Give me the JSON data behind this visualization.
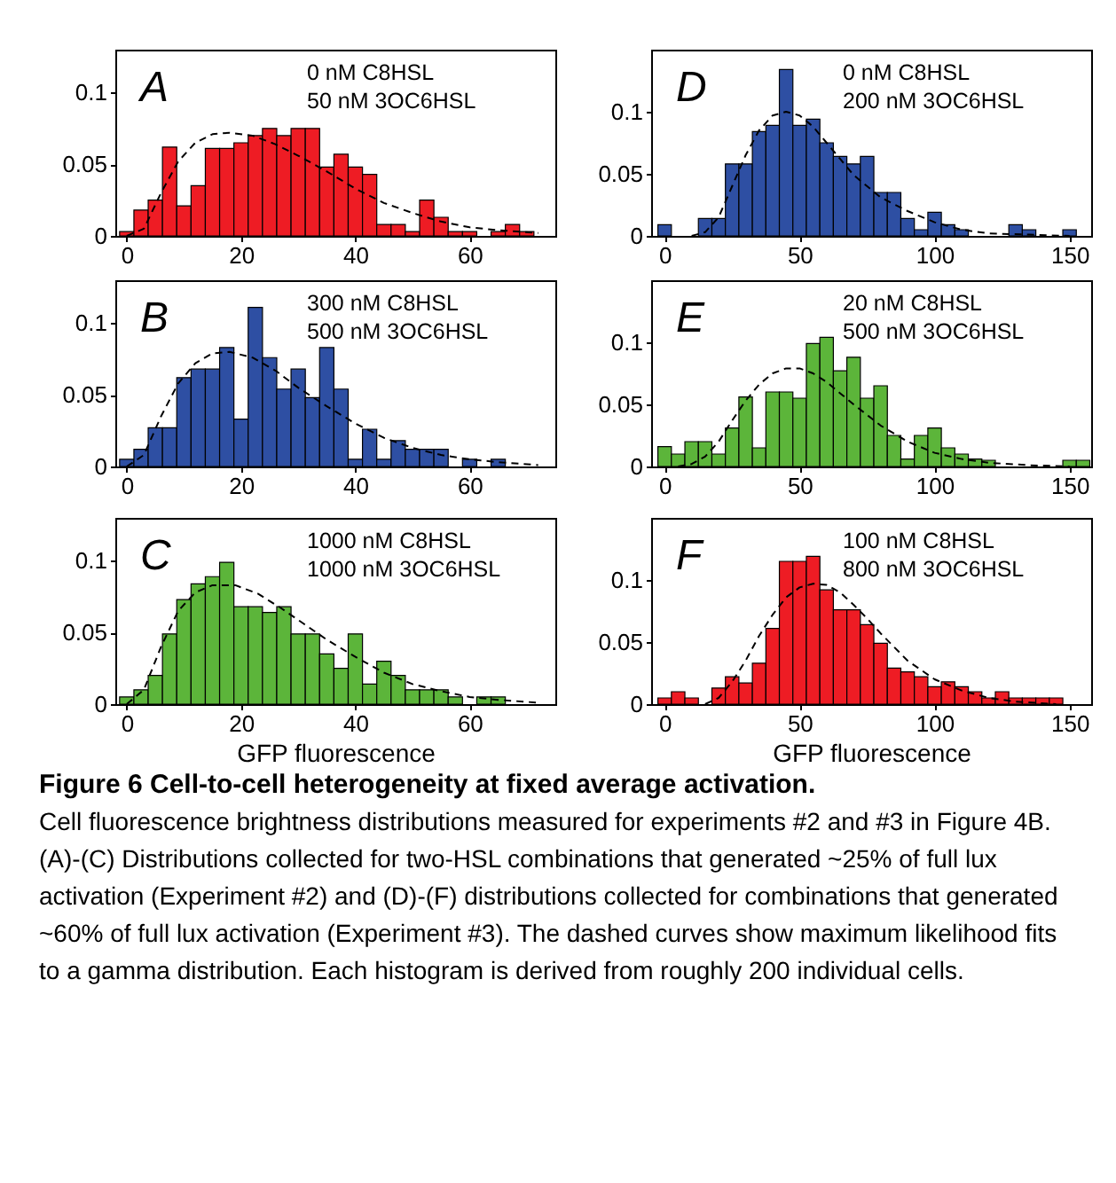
{
  "chart_data": [
    {
      "type": "histogram",
      "bins": [
        -1.25,
        1.25,
        3.75,
        6.25,
        8.75,
        11.25,
        13.75,
        16.25,
        18.75,
        21.25,
        23.75,
        26.25,
        28.75,
        31.25,
        33.75,
        36.25,
        38.75,
        41.25,
        43.75,
        46.25,
        48.75,
        51.25,
        53.75,
        56.25,
        58.75,
        61.25,
        63.75,
        66.25,
        68.75,
        71.25,
        73.75
      ],
      "xlim": [
        -2,
        75
      ],
      "xticks": [
        0,
        20,
        40,
        60
      ],
      "ylim": [
        0,
        0.13
      ],
      "yticks": [
        0,
        0.05,
        0.1
      ],
      "annotations": [
        "A",
        "0 nM C8HSL",
        "50 nM 3OC6HSL"
      ],
      "series": [
        {
          "color": "#ee1c24",
          "values": [
            0.003,
            0.018,
            0.025,
            0.062,
            0.021,
            0.035,
            0.061,
            0.061,
            0.065,
            0.07,
            0.075,
            0.07,
            0.075,
            0.075,
            0.048,
            0.057,
            0.048,
            0.043,
            0.008,
            0.008,
            0.003,
            0.025,
            0.013,
            0.003,
            0.003,
            0,
            0.003,
            0.008,
            0.003,
            0
          ]
        },
        {
          "type": "line",
          "color": "#000000",
          "line_style": "dashed",
          "x": [
            0,
            3,
            6,
            9,
            12,
            15,
            18,
            22,
            26,
            30,
            35,
            40,
            45,
            50,
            55,
            60,
            65,
            72
          ],
          "values": [
            0,
            0.005,
            0.03,
            0.052,
            0.065,
            0.071,
            0.072,
            0.07,
            0.064,
            0.056,
            0.045,
            0.033,
            0.023,
            0.016,
            0.01,
            0.006,
            0.004,
            0.002
          ]
        }
      ]
    },
    {
      "type": "histogram",
      "bins": [
        -2.5,
        2.5,
        7.5,
        12.5,
        17.5,
        22.5,
        27.5,
        32.5,
        37.5,
        42.5,
        47.5,
        52.5,
        57.5,
        62.5,
        67.5,
        72.5,
        77.5,
        82.5,
        87.5,
        92.5,
        97.5,
        102.5,
        107.5,
        112.5,
        117.5,
        122.5,
        127.5,
        132.5,
        137.5,
        142.5,
        147.5,
        152.5,
        157.5
      ],
      "xlim": [
        -5,
        158
      ],
      "xticks": [
        0,
        50,
        100,
        150
      ],
      "ylim": [
        0,
        0.15
      ],
      "yticks": [
        0,
        0.05,
        0.1
      ],
      "annotations": [
        "D",
        "0 nM C8HSL",
        "200 nM 3OC6HSL"
      ],
      "series": [
        {
          "color": "#2e4fa3",
          "values": [
            0.009,
            0,
            0,
            0.014,
            0.014,
            0.058,
            0.058,
            0.084,
            0.089,
            0.134,
            0.089,
            0.094,
            0.075,
            0.064,
            0.058,
            0.064,
            0.035,
            0.035,
            0.014,
            0.005,
            0.019,
            0.009,
            0.005,
            0,
            0,
            0,
            0.009,
            0.005,
            0,
            0,
            0.005,
            0
          ]
        },
        {
          "type": "line",
          "color": "#000000",
          "line_style": "dashed",
          "x": [
            10,
            15,
            20,
            25,
            30,
            35,
            40,
            45,
            50,
            55,
            60,
            65,
            70,
            75,
            80,
            90,
            100,
            110,
            120,
            135,
            150
          ],
          "values": [
            0,
            0.003,
            0.015,
            0.04,
            0.065,
            0.085,
            0.097,
            0.1,
            0.097,
            0.088,
            0.075,
            0.062,
            0.049,
            0.04,
            0.031,
            0.02,
            0.011,
            0.005,
            0.002,
            0.001,
            0
          ]
        }
      ]
    },
    {
      "type": "histogram",
      "bins": [
        -1.25,
        1.25,
        3.75,
        6.25,
        8.75,
        11.25,
        13.75,
        16.25,
        18.75,
        21.25,
        23.75,
        26.25,
        28.75,
        31.25,
        33.75,
        36.25,
        38.75,
        41.25,
        43.75,
        46.25,
        48.75,
        51.25,
        53.75,
        56.25,
        58.75,
        61.25,
        63.75,
        66.25,
        68.75,
        71.25,
        73.75
      ],
      "xlim": [
        -2,
        75
      ],
      "xticks": [
        0,
        20,
        40,
        60
      ],
      "ylim": [
        0,
        0.13
      ],
      "yticks": [
        0,
        0.05,
        0.1
      ],
      "annotations": [
        "B",
        "300 nM C8HSL",
        "500 nM 3OC6HSL"
      ],
      "series": [
        {
          "color": "#2e4fa3",
          "values": [
            0.005,
            0.012,
            0.027,
            0.027,
            0.062,
            0.068,
            0.068,
            0.083,
            0.033,
            0.111,
            0.076,
            0.054,
            0.068,
            0.048,
            0.083,
            0.054,
            0.005,
            0.026,
            0.005,
            0.018,
            0.012,
            0.012,
            0.012,
            0,
            0.005,
            0,
            0.005,
            0,
            0,
            0
          ]
        },
        {
          "type": "line",
          "color": "#000000",
          "line_style": "dashed",
          "x": [
            0,
            3,
            6,
            9,
            12,
            15,
            18,
            22,
            26,
            30,
            35,
            40,
            45,
            50,
            55,
            60,
            65,
            72
          ],
          "values": [
            0,
            0.008,
            0.035,
            0.058,
            0.072,
            0.079,
            0.08,
            0.076,
            0.067,
            0.055,
            0.042,
            0.03,
            0.02,
            0.013,
            0.008,
            0.005,
            0.003,
            0.001
          ]
        }
      ]
    },
    {
      "type": "histogram",
      "bins": [
        -2.5,
        2.5,
        7.5,
        12.5,
        17.5,
        22.5,
        27.5,
        32.5,
        37.5,
        42.5,
        47.5,
        52.5,
        57.5,
        62.5,
        67.5,
        72.5,
        77.5,
        82.5,
        87.5,
        92.5,
        97.5,
        102.5,
        107.5,
        112.5,
        117.5,
        122.5,
        127.5,
        132.5,
        137.5,
        142.5,
        147.5,
        152.5,
        157.5
      ],
      "xlim": [
        -5,
        158
      ],
      "xticks": [
        0,
        50,
        100,
        150
      ],
      "ylim": [
        0,
        0.15
      ],
      "yticks": [
        0,
        0.05,
        0.1
      ],
      "annotations": [
        "E",
        "20 nM C8HSL",
        "500 nM 3OC6HSL"
      ],
      "series": [
        {
          "color": "#5cb53a",
          "values": [
            0.016,
            0.01,
            0.02,
            0.02,
            0.01,
            0.031,
            0.056,
            0.015,
            0.06,
            0.06,
            0.055,
            0.099,
            0.104,
            0.077,
            0.088,
            0.055,
            0.065,
            0.025,
            0.006,
            0.025,
            0.031,
            0.015,
            0.01,
            0.006,
            0.005,
            0,
            0,
            0,
            0,
            0,
            0.005,
            0.005
          ]
        },
        {
          "type": "line",
          "color": "#000000",
          "line_style": "dashed",
          "x": [
            5,
            10,
            15,
            20,
            25,
            30,
            35,
            40,
            45,
            50,
            55,
            60,
            65,
            70,
            80,
            90,
            100,
            110,
            120,
            135,
            150
          ],
          "values": [
            0,
            0.002,
            0.008,
            0.02,
            0.037,
            0.053,
            0.066,
            0.075,
            0.079,
            0.079,
            0.075,
            0.068,
            0.059,
            0.05,
            0.033,
            0.02,
            0.011,
            0.006,
            0.003,
            0.001,
            0
          ]
        }
      ]
    },
    {
      "type": "histogram",
      "bins": [
        -1.25,
        1.25,
        3.75,
        6.25,
        8.75,
        11.25,
        13.75,
        16.25,
        18.75,
        21.25,
        23.75,
        26.25,
        28.75,
        31.25,
        33.75,
        36.25,
        38.75,
        41.25,
        43.75,
        46.25,
        48.75,
        51.25,
        53.75,
        56.25,
        58.75,
        61.25,
        63.75,
        66.25,
        68.75,
        71.25,
        73.75
      ],
      "xlim": [
        -2,
        75
      ],
      "xticks": [
        0,
        20,
        40,
        60
      ],
      "ylim": [
        0,
        0.13
      ],
      "yticks": [
        0,
        0.05,
        0.1
      ],
      "xlabel": "GFP fluorescence",
      "annotations": [
        "C",
        "1000 nM C8HSL",
        "1000 nM 3OC6HSL"
      ],
      "series": [
        {
          "color": "#5cb53a",
          "values": [
            0.005,
            0.01,
            0.02,
            0.049,
            0.073,
            0.084,
            0.089,
            0.099,
            0.068,
            0.068,
            0.064,
            0.068,
            0.049,
            0.049,
            0.035,
            0.025,
            0.049,
            0.014,
            0.03,
            0.02,
            0.01,
            0.01,
            0.01,
            0.005,
            0,
            0.005,
            0.005,
            0,
            0,
            0
          ]
        },
        {
          "type": "line",
          "color": "#000000",
          "line_style": "dashed",
          "x": [
            0,
            3,
            6,
            9,
            12,
            15,
            19,
            23,
            27,
            31,
            35,
            40,
            45,
            50,
            55,
            60,
            65,
            72
          ],
          "values": [
            0,
            0.01,
            0.04,
            0.065,
            0.078,
            0.083,
            0.083,
            0.077,
            0.067,
            0.056,
            0.045,
            0.033,
            0.022,
            0.014,
            0.009,
            0.005,
            0.003,
            0.001
          ]
        }
      ]
    },
    {
      "type": "histogram",
      "bins": [
        -2.5,
        2.5,
        7.5,
        12.5,
        17.5,
        22.5,
        27.5,
        32.5,
        37.5,
        42.5,
        47.5,
        52.5,
        57.5,
        62.5,
        67.5,
        72.5,
        77.5,
        82.5,
        87.5,
        92.5,
        97.5,
        102.5,
        107.5,
        112.5,
        117.5,
        122.5,
        127.5,
        132.5,
        137.5,
        142.5,
        147.5,
        152.5,
        157.5
      ],
      "xlim": [
        -5,
        158
      ],
      "xticks": [
        0,
        50,
        100,
        150
      ],
      "ylim": [
        0,
        0.15
      ],
      "yticks": [
        0,
        0.05,
        0.1
      ],
      "xlabel": "GFP fluorescence",
      "annotations": [
        "F",
        "100 nM C8HSL",
        "800 nM 3OC6HSL"
      ],
      "series": [
        {
          "color": "#ee1c24",
          "values": [
            0.005,
            0.01,
            0.005,
            0,
            0.013,
            0.022,
            0.017,
            0.033,
            0.061,
            0.115,
            0.115,
            0.119,
            0.092,
            0.076,
            0.076,
            0.064,
            0.049,
            0.029,
            0.026,
            0.022,
            0.014,
            0.018,
            0.014,
            0.01,
            0.005,
            0.01,
            0.005,
            0.005,
            0.005,
            0.005,
            0,
            0
          ]
        },
        {
          "type": "line",
          "color": "#000000",
          "line_style": "dashed",
          "x": [
            15,
            20,
            25,
            30,
            35,
            40,
            45,
            50,
            55,
            60,
            65,
            70,
            75,
            80,
            90,
            100,
            110,
            120,
            130,
            145
          ],
          "values": [
            0,
            0.005,
            0.018,
            0.035,
            0.055,
            0.072,
            0.086,
            0.094,
            0.097,
            0.096,
            0.09,
            0.08,
            0.069,
            0.057,
            0.035,
            0.02,
            0.011,
            0.005,
            0.002,
            0
          ]
        }
      ]
    },
    {
      "type": "other",
      "title": "Figure 6 Cell-to-cell heterogeneity at fixed average activation.",
      "annotations": [
        "Cell fluorescence brightness distributions measured for experiments #2 and #3 in Figure 4B. (A)-(C) Distributions collected for two-HSL combinations that generated ~25% of full lux activation (Experiment #2) and (D)-(F) distributions collected for combinations that generated ~60% of full lux activation (Experiment #3). The dashed curves show maximum likelihood fits to a gamma distribution. Each histogram is derived from roughly 200 individual cells."
      ]
    }
  ]
}
